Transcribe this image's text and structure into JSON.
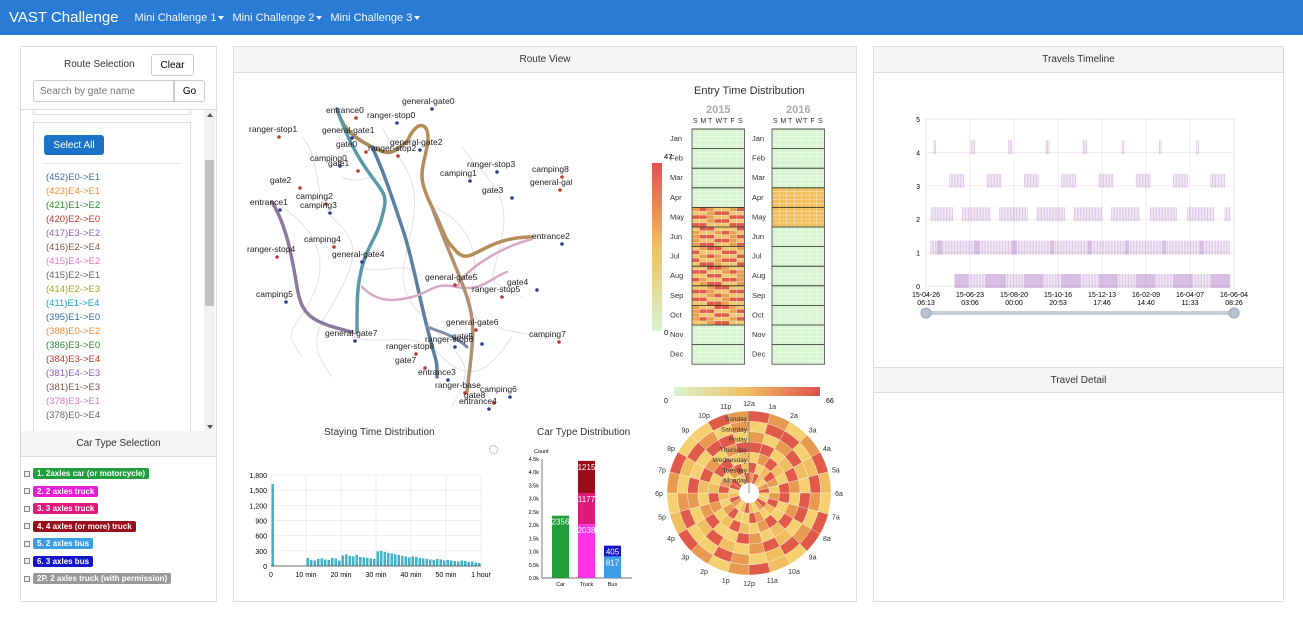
{
  "navbar": {
    "brand": "VAST Challenge",
    "menus": [
      "Mini Challenge 1",
      "Mini Challenge 2",
      "Mini Challenge 3"
    ]
  },
  "route_selection": {
    "title": "Route Selection",
    "clear_label": "Clear",
    "search_placeholder": "Search by gate name",
    "go_label": "Go",
    "select_all_label": "Select All",
    "routes": [
      {
        "label": "(452)E0->E1",
        "color": "#3a6ea5"
      },
      {
        "label": "(423)E4->E1",
        "color": "#f08c3a"
      },
      {
        "label": "(421)E1->E2",
        "color": "#2e8b2e"
      },
      {
        "label": "(420)E2->E0",
        "color": "#c0392b"
      },
      {
        "label": "(417)E3->E2",
        "color": "#8e62b8"
      },
      {
        "label": "(416)E2->E4",
        "color": "#7a5c4a"
      },
      {
        "label": "(415)E4->E2",
        "color": "#e377c2"
      },
      {
        "label": "(415)E2->E1",
        "color": "#666666"
      },
      {
        "label": "(414)E2->E3",
        "color": "#a8a820"
      },
      {
        "label": "(411)E1->E4",
        "color": "#17a2c0"
      },
      {
        "label": "(395)E1->E0",
        "color": "#3a6ea5"
      },
      {
        "label": "(388)E0->E2",
        "color": "#f08c3a"
      },
      {
        "label": "(386)E3->E0",
        "color": "#2e8b2e"
      },
      {
        "label": "(384)E3->E4",
        "color": "#c0392b"
      },
      {
        "label": "(381)E4->E3",
        "color": "#8e62b8"
      },
      {
        "label": "(381)E1->E3",
        "color": "#7a5c4a"
      },
      {
        "label": "(378)E3->E1",
        "color": "#e377c2"
      },
      {
        "label": "(378)E0->E4",
        "color": "#666666"
      }
    ]
  },
  "car_type_selection": {
    "title": "Car Type Selection",
    "types": [
      {
        "label": "1. 2axles car (or motorcycle)",
        "color": "#1f9e3b"
      },
      {
        "label": "2. 2 axles truck",
        "color": "#e61ed6"
      },
      {
        "label": "3. 3 axles truck",
        "color": "#e0197a"
      },
      {
        "label": "4. 4 axles (or more) truck",
        "color": "#9b0d1a"
      },
      {
        "label": "5. 2 axles bus",
        "color": "#3d9ee8"
      },
      {
        "label": "6. 3 axles bus",
        "color": "#1414c8"
      },
      {
        "label": "2P. 2 axles truck (with permission)",
        "color": "#999999"
      }
    ]
  },
  "route_view": {
    "title": "Route View",
    "gates": [
      "general-gate0",
      "entrance0",
      "ranger-stop0",
      "ranger-stop1",
      "general-gate1",
      "gate0",
      "general-gate2",
      "ranger-stop2",
      "camping0",
      "gate1",
      "ranger-stop3",
      "camping8",
      "camping1",
      "general-gate",
      "gate3",
      "gate2",
      "entrance1",
      "camping2",
      "camping3",
      "camping4",
      "entrance2",
      "ranger-stop4",
      "general-gate4",
      "general-gate5",
      "gate4",
      "ranger-stop5",
      "camping5",
      "general-gate6",
      "general-gate7",
      "camping7",
      "ranger-stop6",
      "ranger-stop8",
      "gate5",
      "gate7",
      "entrance3",
      "ranger-base",
      "camping6",
      "gate8",
      "entrance4"
    ]
  },
  "entry_time": {
    "title": "Entry Time Distribution",
    "years": [
      "2015",
      "2016"
    ],
    "weekdays": [
      "S",
      "M",
      "T",
      "W",
      "T",
      "F",
      "S"
    ],
    "months": [
      "Jan",
      "Feb",
      "Mar",
      "Apr",
      "May",
      "Jun",
      "Jul",
      "Aug",
      "Sep",
      "Oct",
      "Nov",
      "Dec"
    ],
    "legend_min": "0",
    "legend_max": "47",
    "polar_legend_min": "0",
    "polar_legend_max": "66",
    "polar_days": [
      "Sunday",
      "Saturday",
      "Friday",
      "Thursday",
      "Wednesday",
      "Tuesday",
      "Monday"
    ],
    "polar_hours": [
      "12a",
      "1a",
      "2a",
      "3a",
      "4a",
      "5a",
      "6a",
      "7a",
      "8a",
      "9a",
      "10a",
      "11a",
      "12p",
      "1p",
      "2p",
      "3p",
      "4p",
      "5p",
      "6p",
      "7p",
      "8p",
      "9p",
      "10p",
      "11p"
    ]
  },
  "staying_time": {
    "title": "Staying Time Distribution",
    "yticks": [
      "0",
      "300",
      "600",
      "900",
      "1,200",
      "1,500",
      "1,800"
    ],
    "xticks": [
      "0",
      "10 min",
      "20 min",
      "30 min",
      "40 min",
      "50 min",
      "1 hour"
    ]
  },
  "car_type_distribution": {
    "title": "Car Type Distribution",
    "ylabel": "Count",
    "yticks": [
      "0.0k",
      "0.5k",
      "1.0k",
      "1.5k",
      "2.0k",
      "2.5k",
      "3.0k",
      "3.5k",
      "4.0k",
      "4.5k"
    ],
    "categories": [
      "Car",
      "Truck",
      "Bus"
    ],
    "labels": [
      "2356",
      "2038",
      "1177",
      "1215",
      "817",
      "405"
    ]
  },
  "travels_timeline": {
    "title": "Travels Timeline",
    "yticks": [
      "0",
      "1",
      "2",
      "3",
      "4",
      "5"
    ],
    "xticks": [
      {
        "date": "15-04-26",
        "time": "06:13"
      },
      {
        "date": "15-06-23",
        "time": "03:06"
      },
      {
        "date": "15-08-20",
        "time": "00:00"
      },
      {
        "date": "15-10-16",
        "time": "20:53"
      },
      {
        "date": "15-12-13",
        "time": "17:46"
      },
      {
        "date": "16-02-09",
        "time": "14:40"
      },
      {
        "date": "16-04-07",
        "time": "11:33"
      },
      {
        "date": "16-06-04",
        "time": "08:26"
      }
    ]
  },
  "travel_detail": {
    "title": "Travel Detail"
  },
  "chart_data": [
    {
      "type": "bar",
      "title": "Staying Time Distribution",
      "x_unit": "minutes",
      "ylim": [
        0,
        1800
      ],
      "x": [
        0,
        1,
        2,
        3,
        4,
        5,
        6,
        7,
        8,
        9,
        10,
        11,
        12,
        13,
        14,
        15,
        16,
        17,
        18,
        19,
        20,
        21,
        22,
        23,
        24,
        25,
        26,
        27,
        28,
        29,
        30,
        31,
        32,
        33,
        34,
        35,
        36,
        37,
        38,
        39,
        40,
        41,
        42,
        43,
        44,
        45,
        46,
        47,
        48,
        49,
        50,
        51,
        52,
        53,
        54,
        55,
        56,
        57,
        58,
        59
      ],
      "values": [
        1620,
        0,
        0,
        0,
        0,
        0,
        0,
        0,
        0,
        0,
        160,
        120,
        110,
        140,
        150,
        130,
        120,
        160,
        150,
        110,
        210,
        230,
        200,
        190,
        220,
        180,
        170,
        160,
        150,
        140,
        290,
        300,
        280,
        260,
        250,
        230,
        220,
        200,
        190,
        170,
        190,
        180,
        160,
        150,
        140,
        130,
        120,
        140,
        130,
        110,
        120,
        110,
        100,
        90,
        110,
        100,
        80,
        90,
        70,
        60
      ]
    },
    {
      "type": "bar",
      "title": "Car Type Distribution",
      "categories": [
        "Car",
        "Truck",
        "Bus"
      ],
      "ylim": [
        0,
        4500
      ],
      "series": [
        {
          "name": "1",
          "values": [
            2356,
            0,
            0
          ]
        },
        {
          "name": "2",
          "values": [
            0,
            2038,
            0
          ]
        },
        {
          "name": "3",
          "values": [
            0,
            1177,
            0
          ]
        },
        {
          "name": "4",
          "values": [
            0,
            1215,
            0
          ]
        },
        {
          "name": "5",
          "values": [
            0,
            0,
            817
          ]
        },
        {
          "name": "6",
          "values": [
            0,
            0,
            405
          ]
        }
      ]
    }
  ]
}
